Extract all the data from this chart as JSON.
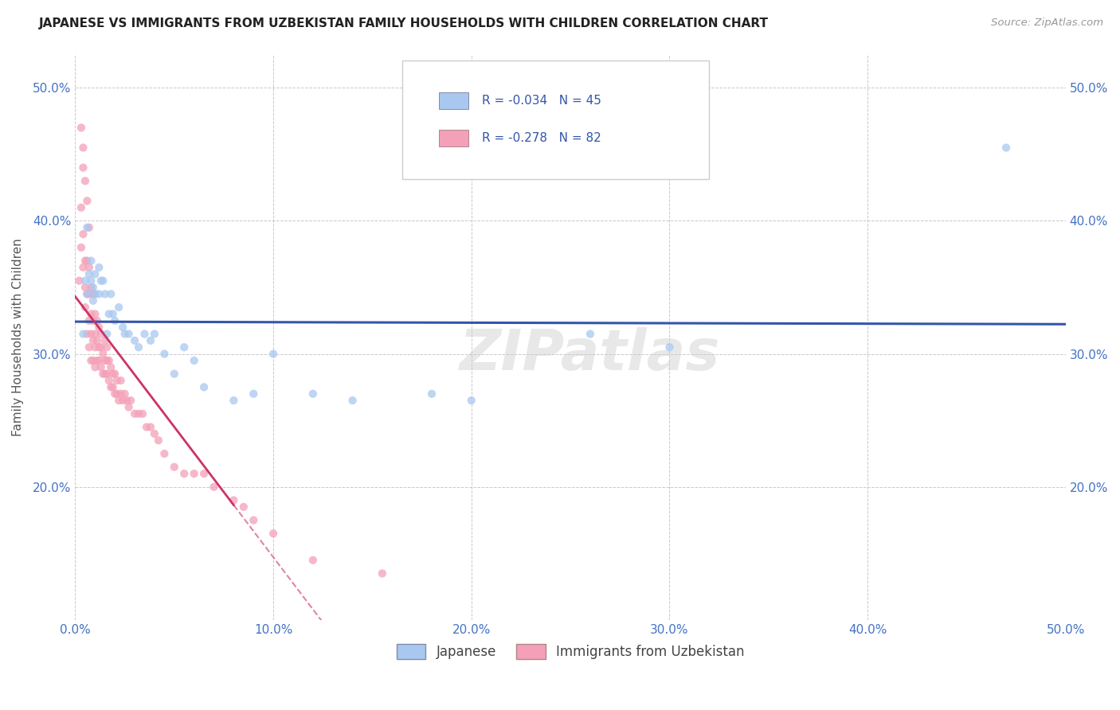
{
  "title": "JAPANESE VS IMMIGRANTS FROM UZBEKISTAN FAMILY HOUSEHOLDS WITH CHILDREN CORRELATION CHART",
  "source_text": "Source: ZipAtlas.com",
  "ylabel": "Family Households with Children",
  "xlim": [
    0.0,
    0.5
  ],
  "ylim": [
    0.1,
    0.525
  ],
  "xtick_labels": [
    "0.0%",
    "10.0%",
    "20.0%",
    "30.0%",
    "40.0%",
    "50.0%"
  ],
  "xtick_vals": [
    0.0,
    0.1,
    0.2,
    0.3,
    0.4,
    0.5
  ],
  "ytick_labels": [
    "20.0%",
    "30.0%",
    "40.0%",
    "50.0%"
  ],
  "ytick_vals": [
    0.2,
    0.3,
    0.4,
    0.5
  ],
  "legend_label_blue": "Japanese",
  "legend_label_pink": "Immigrants from Uzbekistan",
  "R_blue": -0.034,
  "N_blue": 45,
  "R_pink": -0.278,
  "N_pink": 82,
  "color_blue": "#A8C8F0",
  "color_pink": "#F4A0B8",
  "line_color_blue": "#3355AA",
  "line_color_pink": "#CC3366",
  "watermark_text": "ZIPatlas",
  "title_color": "#222222",
  "axis_label_color": "#4472C4",
  "blue_scatter_x": [
    0.004,
    0.005,
    0.006,
    0.006,
    0.007,
    0.008,
    0.008,
    0.009,
    0.009,
    0.01,
    0.01,
    0.012,
    0.012,
    0.013,
    0.014,
    0.015,
    0.016,
    0.017,
    0.018,
    0.019,
    0.02,
    0.022,
    0.024,
    0.025,
    0.027,
    0.03,
    0.032,
    0.035,
    0.038,
    0.04,
    0.045,
    0.05,
    0.055,
    0.06,
    0.065,
    0.08,
    0.09,
    0.1,
    0.12,
    0.14,
    0.18,
    0.2,
    0.26,
    0.3,
    0.47
  ],
  "blue_scatter_y": [
    0.315,
    0.355,
    0.345,
    0.395,
    0.36,
    0.355,
    0.37,
    0.34,
    0.35,
    0.345,
    0.36,
    0.345,
    0.365,
    0.355,
    0.355,
    0.345,
    0.315,
    0.33,
    0.345,
    0.33,
    0.325,
    0.335,
    0.32,
    0.315,
    0.315,
    0.31,
    0.305,
    0.315,
    0.31,
    0.315,
    0.3,
    0.285,
    0.305,
    0.295,
    0.275,
    0.265,
    0.27,
    0.3,
    0.27,
    0.265,
    0.27,
    0.265,
    0.315,
    0.305,
    0.455
  ],
  "pink_scatter_x": [
    0.002,
    0.003,
    0.003,
    0.004,
    0.004,
    0.005,
    0.005,
    0.005,
    0.006,
    0.006,
    0.006,
    0.007,
    0.007,
    0.007,
    0.007,
    0.008,
    0.008,
    0.008,
    0.008,
    0.009,
    0.009,
    0.009,
    0.009,
    0.01,
    0.01,
    0.01,
    0.01,
    0.01,
    0.011,
    0.011,
    0.011,
    0.012,
    0.012,
    0.012,
    0.013,
    0.013,
    0.013,
    0.014,
    0.014,
    0.015,
    0.015,
    0.015,
    0.016,
    0.016,
    0.016,
    0.017,
    0.017,
    0.018,
    0.018,
    0.019,
    0.019,
    0.02,
    0.02,
    0.021,
    0.021,
    0.022,
    0.023,
    0.023,
    0.024,
    0.025,
    0.026,
    0.027,
    0.028,
    0.03,
    0.032,
    0.034,
    0.036,
    0.038,
    0.04,
    0.042,
    0.045,
    0.05,
    0.055,
    0.06,
    0.065,
    0.07,
    0.08,
    0.085,
    0.09,
    0.1,
    0.12,
    0.155
  ],
  "pink_scatter_y": [
    0.355,
    0.38,
    0.41,
    0.365,
    0.39,
    0.335,
    0.35,
    0.37,
    0.315,
    0.345,
    0.37,
    0.305,
    0.325,
    0.345,
    0.365,
    0.295,
    0.315,
    0.33,
    0.35,
    0.295,
    0.31,
    0.325,
    0.345,
    0.29,
    0.305,
    0.315,
    0.33,
    0.345,
    0.295,
    0.31,
    0.325,
    0.295,
    0.305,
    0.32,
    0.29,
    0.305,
    0.315,
    0.285,
    0.3,
    0.285,
    0.295,
    0.31,
    0.285,
    0.295,
    0.305,
    0.28,
    0.295,
    0.275,
    0.29,
    0.275,
    0.285,
    0.27,
    0.285,
    0.27,
    0.28,
    0.265,
    0.27,
    0.28,
    0.265,
    0.27,
    0.265,
    0.26,
    0.265,
    0.255,
    0.255,
    0.255,
    0.245,
    0.245,
    0.24,
    0.235,
    0.225,
    0.215,
    0.21,
    0.21,
    0.21,
    0.2,
    0.19,
    0.185,
    0.175,
    0.165,
    0.145,
    0.135
  ],
  "pink_extra_high_x": [
    0.003,
    0.004,
    0.004,
    0.005,
    0.006,
    0.007
  ],
  "pink_extra_high_y": [
    0.47,
    0.44,
    0.455,
    0.43,
    0.415,
    0.395
  ]
}
